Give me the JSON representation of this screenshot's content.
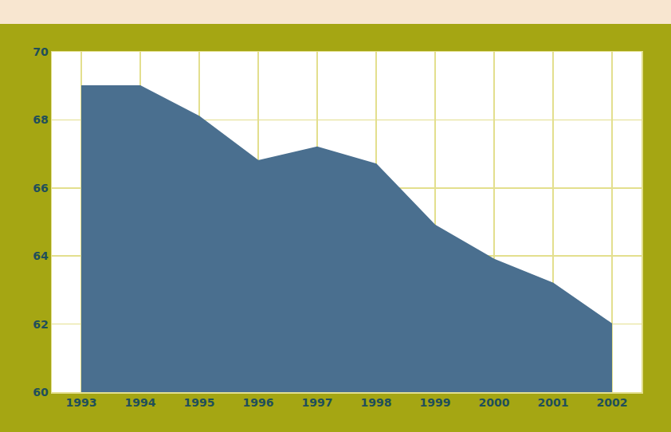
{
  "chart_data": {
    "type": "area",
    "x": [
      1993,
      1994,
      1995,
      1996,
      1997,
      1998,
      1999,
      2000,
      2001,
      2002
    ],
    "values": [
      69,
      69,
      68.1,
      66.8,
      67.2,
      66.7,
      64.9,
      63.9,
      63.2,
      62
    ],
    "color": "#4a6f8f",
    "xlim": [
      1992.5,
      2002.5
    ],
    "xticks": [
      1993,
      1994,
      1995,
      1996,
      1997,
      1998,
      1999,
      2000,
      2001,
      2002
    ],
    "ylim": [
      60,
      70
    ],
    "yticks": [
      60,
      62,
      64,
      66,
      68,
      70
    ],
    "grid": true
  }
}
